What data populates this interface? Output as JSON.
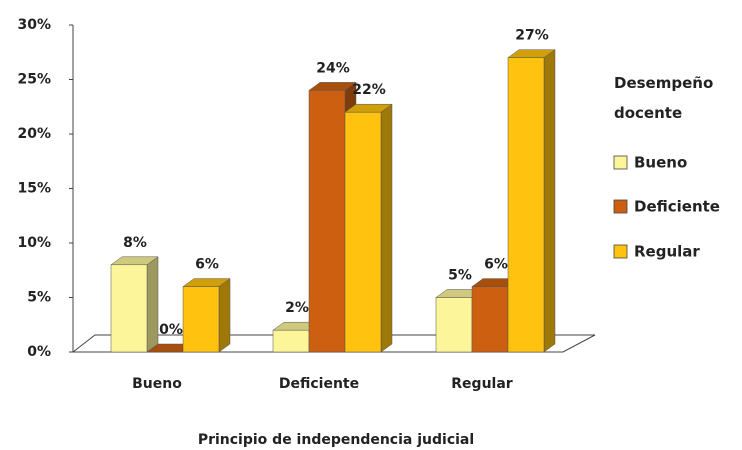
{
  "chart_data": {
    "type": "bar3d",
    "x_label": "Principio de independencia judicial",
    "legend_title": "Desempeño docente",
    "legend": "right",
    "categories": [
      "Bueno",
      "Deficiente",
      "Regular"
    ],
    "series": [
      {
        "name": "Bueno",
        "color": "#fcf59a",
        "values": [
          8,
          2,
          5
        ],
        "value_labels": [
          "8%",
          "2%",
          "5%"
        ]
      },
      {
        "name": "Deficiente",
        "color": "#cc6010",
        "values": [
          0,
          24,
          6
        ],
        "value_labels": [
          "0%",
          "24%",
          "6%"
        ]
      },
      {
        "name": "Regular",
        "color": "#ffc20e",
        "values": [
          6,
          22,
          27
        ],
        "value_labels": [
          "6%",
          "22%",
          "27%"
        ]
      }
    ],
    "ylim": [
      0,
      30
    ],
    "yticks": [
      {
        "value": 0,
        "label": "0%"
      },
      {
        "value": 5,
        "label": "5%"
      },
      {
        "value": 10,
        "label": "10%"
      },
      {
        "value": 15,
        "label": "15%"
      },
      {
        "value": 20,
        "label": "20%"
      },
      {
        "value": 25,
        "label": "25%"
      },
      {
        "value": 30,
        "label": "30%"
      }
    ]
  }
}
